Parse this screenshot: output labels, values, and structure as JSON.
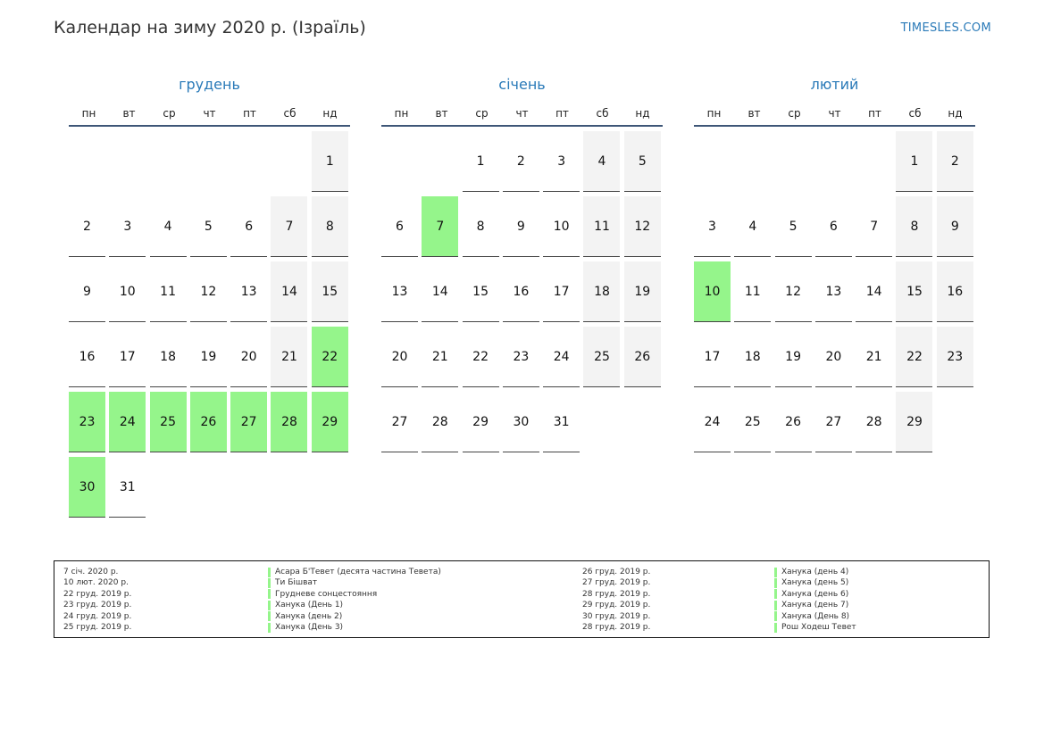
{
  "header": {
    "title": "Календар на зиму 2020 р. (Ізраїль)",
    "site": "TIMESLES.COM"
  },
  "weekdays": [
    "пн",
    "вт",
    "ср",
    "чт",
    "пт",
    "сб",
    "нд"
  ],
  "months": [
    {
      "name": "грудень",
      "offset": 6,
      "days": 31,
      "weekend_days": [
        1,
        7,
        8,
        14,
        15,
        21
      ],
      "holidays": [
        22,
        23,
        24,
        25,
        26,
        27,
        28,
        29,
        30
      ]
    },
    {
      "name": "січень",
      "offset": 2,
      "days": 31,
      "weekend_days": [
        4,
        5,
        11,
        12,
        18,
        19,
        25,
        26
      ],
      "holidays": [
        7
      ]
    },
    {
      "name": "лютий",
      "offset": 5,
      "days": 29,
      "weekend_days": [
        1,
        2,
        8,
        9,
        15,
        16,
        22,
        23,
        29
      ],
      "holidays": [
        10
      ]
    }
  ],
  "legend": {
    "left": [
      {
        "date": "7 січ. 2020 р.",
        "name": "Асара Б'Тевет (десята частина Тевета)"
      },
      {
        "date": "10 лют. 2020 р.",
        "name": "Ти Бішват"
      },
      {
        "date": "22 груд. 2019 р.",
        "name": "Грудневе сонцестояння"
      },
      {
        "date": "23 груд. 2019 р.",
        "name": "Ханука (День 1)"
      },
      {
        "date": "24 груд. 2019 р.",
        "name": "Ханука (день 2)"
      },
      {
        "date": "25 груд. 2019 р.",
        "name": "Ханука (День 3)"
      }
    ],
    "right": [
      {
        "date": "26 груд. 2019 р.",
        "name": "Ханука (день 4)"
      },
      {
        "date": "27 груд. 2019 р.",
        "name": "Ханука (день 5)"
      },
      {
        "date": "28 груд. 2019 р.",
        "name": "Ханука (день 6)"
      },
      {
        "date": "29 груд. 2019 р.",
        "name": "Ханука (день 7)"
      },
      {
        "date": "30 груд. 2019 р.",
        "name": "Ханука (День 8)"
      },
      {
        "date": "28 груд. 2019 р.",
        "name": "Рош Ходеш Тевет"
      }
    ]
  },
  "colors": {
    "accent": "#2a7ab8",
    "holiday": "#95f58b",
    "weekend": "#f3f3f3",
    "rule": "#3e5677"
  }
}
